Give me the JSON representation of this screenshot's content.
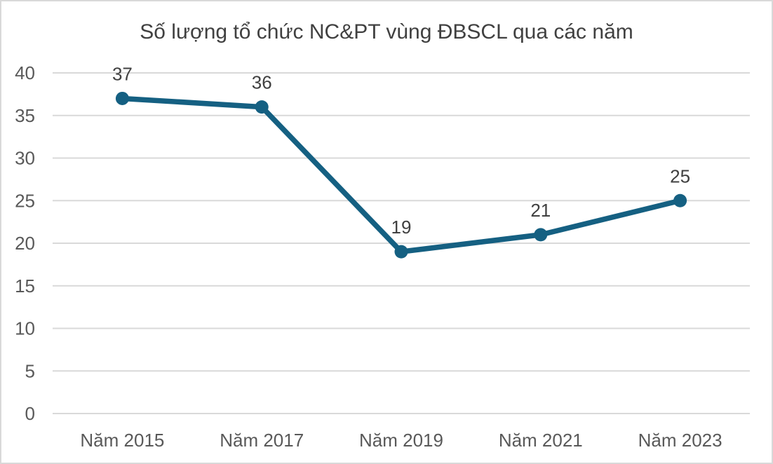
{
  "frame": {
    "background": "#FFFFFF",
    "border_color": "#D9D9D9"
  },
  "chart_data": {
    "type": "line",
    "title": "Số lượng tổ chức NC&PT vùng ĐBSCL qua các năm",
    "categories": [
      "Năm 2015",
      "Năm 2017",
      "Năm 2019",
      "Năm 2021",
      "Năm 2023"
    ],
    "values": [
      37,
      36,
      19,
      21,
      25
    ],
    "data_labels": [
      "37",
      "36",
      "19",
      "21",
      "25"
    ],
    "xlabel": "",
    "ylabel": "",
    "ylim": [
      0,
      40
    ],
    "y_ticks": [
      0,
      5,
      10,
      15,
      20,
      25,
      30,
      35,
      40
    ],
    "grid": "horizontal-only",
    "legend": "none",
    "marker": "filled-circle",
    "colors": {
      "line": "#156082",
      "marker": "#156082",
      "gridline": "#D9D9D9",
      "axis_label": "#595959",
      "data_label": "#404040",
      "title": "#404040"
    }
  }
}
